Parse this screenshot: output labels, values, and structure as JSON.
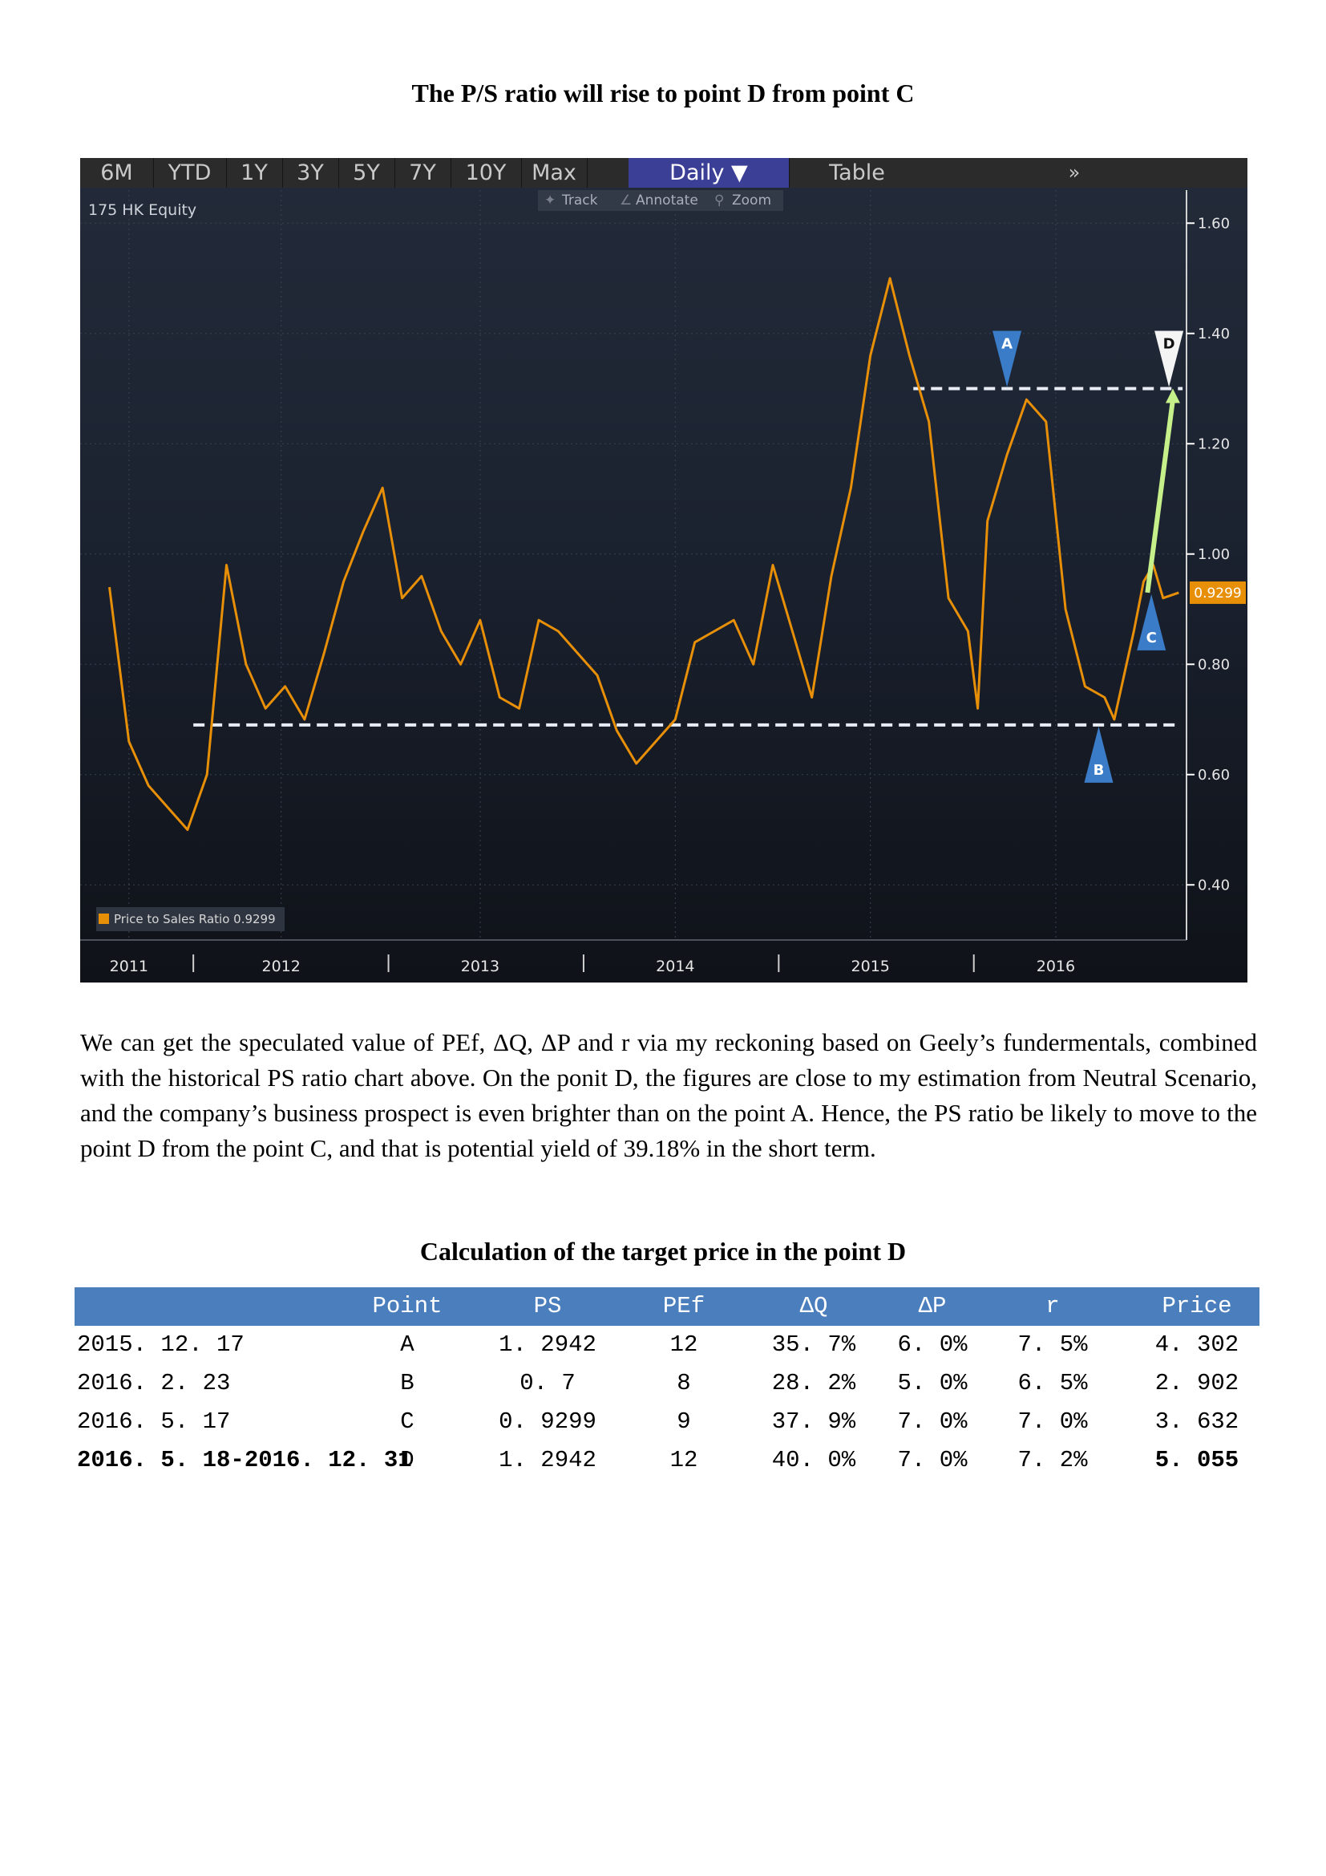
{
  "page": {
    "title": "The P/S ratio will rise to point D from point C",
    "paragraph": "We can get the speculated value of PEf, ΔQ, ΔP and r via my reckoning based on Geely’s fundermentals, combined with the historical PS ratio chart above. On the ponit D, the figures are close to my estimation from Neutral Scenario, and the company’s business prospect is even brighter than on the point A. Hence, the PS ratio be likely to move to the point D from the point C, and that is potential yield of 39.18% in the short term.",
    "table_title": "Calculation of the target price in the point D"
  },
  "toolbar": {
    "buttons": [
      "6M",
      "YTD",
      "1Y",
      "3Y",
      "5Y",
      "7Y",
      "10Y",
      "Max"
    ],
    "daily": "Daily ▼",
    "table": "Table",
    "more": "»",
    "track": "Track",
    "annotate": "Annotate",
    "zoom": "Zoom"
  },
  "chart": {
    "equity": "175 HK Equity",
    "legend": "Price to Sales Ratio 0.9299",
    "last_value_label": "0.9299",
    "colors": {
      "line": "#e88f08",
      "last_value_bg": "#e88f08",
      "marker": "#3b7cc8",
      "arrow": "#c6f08a"
    }
  },
  "chart_data": {
    "type": "line",
    "series": [
      {
        "name": "Price to Sales Ratio",
        "x": [
          2010.9,
          2011.0,
          2011.1,
          2011.2,
          2011.3,
          2011.4,
          2011.5,
          2011.6,
          2011.7,
          2011.8,
          2011.9,
          2012.0,
          2012.1,
          2012.2,
          2012.3,
          2012.4,
          2012.5,
          2012.6,
          2012.7,
          2012.8,
          2012.9,
          2013.0,
          2013.1,
          2013.2,
          2013.3,
          2013.4,
          2013.5,
          2013.6,
          2013.7,
          2013.8,
          2013.9,
          2014.0,
          2014.1,
          2014.2,
          2014.3,
          2014.4,
          2014.5,
          2014.6,
          2014.7,
          2014.8,
          2014.9,
          2015.0,
          2015.1,
          2015.2,
          2015.3,
          2015.35,
          2015.4,
          2015.5,
          2015.6,
          2015.7,
          2015.8,
          2015.9,
          2016.0,
          2016.05,
          2016.1,
          2016.15,
          2016.2,
          2016.25,
          2016.3,
          2016.38
        ],
        "values": [
          0.94,
          0.66,
          0.58,
          0.54,
          0.5,
          0.6,
          0.98,
          0.8,
          0.72,
          0.76,
          0.7,
          0.82,
          0.95,
          1.04,
          1.12,
          0.92,
          0.96,
          0.86,
          0.8,
          0.88,
          0.74,
          0.72,
          0.88,
          0.86,
          0.82,
          0.78,
          0.68,
          0.62,
          0.66,
          0.7,
          0.84,
          0.86,
          0.88,
          0.8,
          0.98,
          0.86,
          0.74,
          0.96,
          1.12,
          1.36,
          1.5,
          1.36,
          1.24,
          0.92,
          0.86,
          0.72,
          1.06,
          1.18,
          1.28,
          1.24,
          0.9,
          0.76,
          0.74,
          0.7,
          0.78,
          0.86,
          0.95,
          0.98,
          0.92,
          0.9299
        ]
      }
    ],
    "xlim": [
      2010.75,
      2016.42
    ],
    "ylim": [
      0.3,
      1.66
    ],
    "yticks": [
      1.6,
      1.4,
      1.2,
      1.0,
      0.8,
      0.6,
      0.4
    ],
    "ytick_labels": [
      "1.60",
      "1.40",
      "1.20",
      "1.00",
      "0.80",
      "0.60",
      "0.40"
    ],
    "xtick_labels": [
      "2011",
      "2012",
      "2013",
      "2014",
      "2015",
      "2016"
    ],
    "xtick_positions": [
      2011.0,
      2011.78,
      2012.8,
      2013.8,
      2014.8,
      2015.75
    ],
    "reference_lines": [
      {
        "y": 0.69,
        "x_from": 2011.33,
        "x_to": 2016.38
      },
      {
        "y": 1.3,
        "x_from": 2015.02,
        "x_to": 2016.4
      }
    ],
    "annotations": [
      {
        "label": "A",
        "x": 2015.5,
        "y": 1.3,
        "direction": "down"
      },
      {
        "label": "B",
        "x": 2015.97,
        "y": 0.69,
        "direction": "up"
      },
      {
        "label": "C",
        "x": 2016.24,
        "y": 0.93,
        "direction": "up"
      },
      {
        "label": "D",
        "x": 2016.33,
        "y": 1.3,
        "direction": "down"
      }
    ],
    "arrow": {
      "from": [
        2016.22,
        0.93
      ],
      "to": [
        2016.35,
        1.3
      ]
    }
  },
  "table": {
    "headers": [
      "",
      "Point",
      "PS",
      "PEf",
      "ΔQ",
      "ΔP",
      "r",
      "Price"
    ],
    "rows": [
      [
        "2015. 12. 17",
        "A",
        "1. 2942",
        "12",
        "35. 7%",
        "6. 0%",
        "7. 5%",
        "4. 302"
      ],
      [
        "2016. 2. 23",
        "B",
        "0. 7",
        "8",
        "28. 2%",
        "5. 0%",
        "6. 5%",
        "2. 902"
      ],
      [
        "2016. 5. 17",
        "C",
        "0. 9299",
        "9",
        "37. 9%",
        "7. 0%",
        "7. 0%",
        "3. 632"
      ],
      [
        "2016. 5. 18-2016. 12. 31",
        "D",
        "1. 2942",
        "12",
        "40. 0%",
        "7. 0%",
        "7. 2%",
        "5. 055"
      ]
    ]
  }
}
